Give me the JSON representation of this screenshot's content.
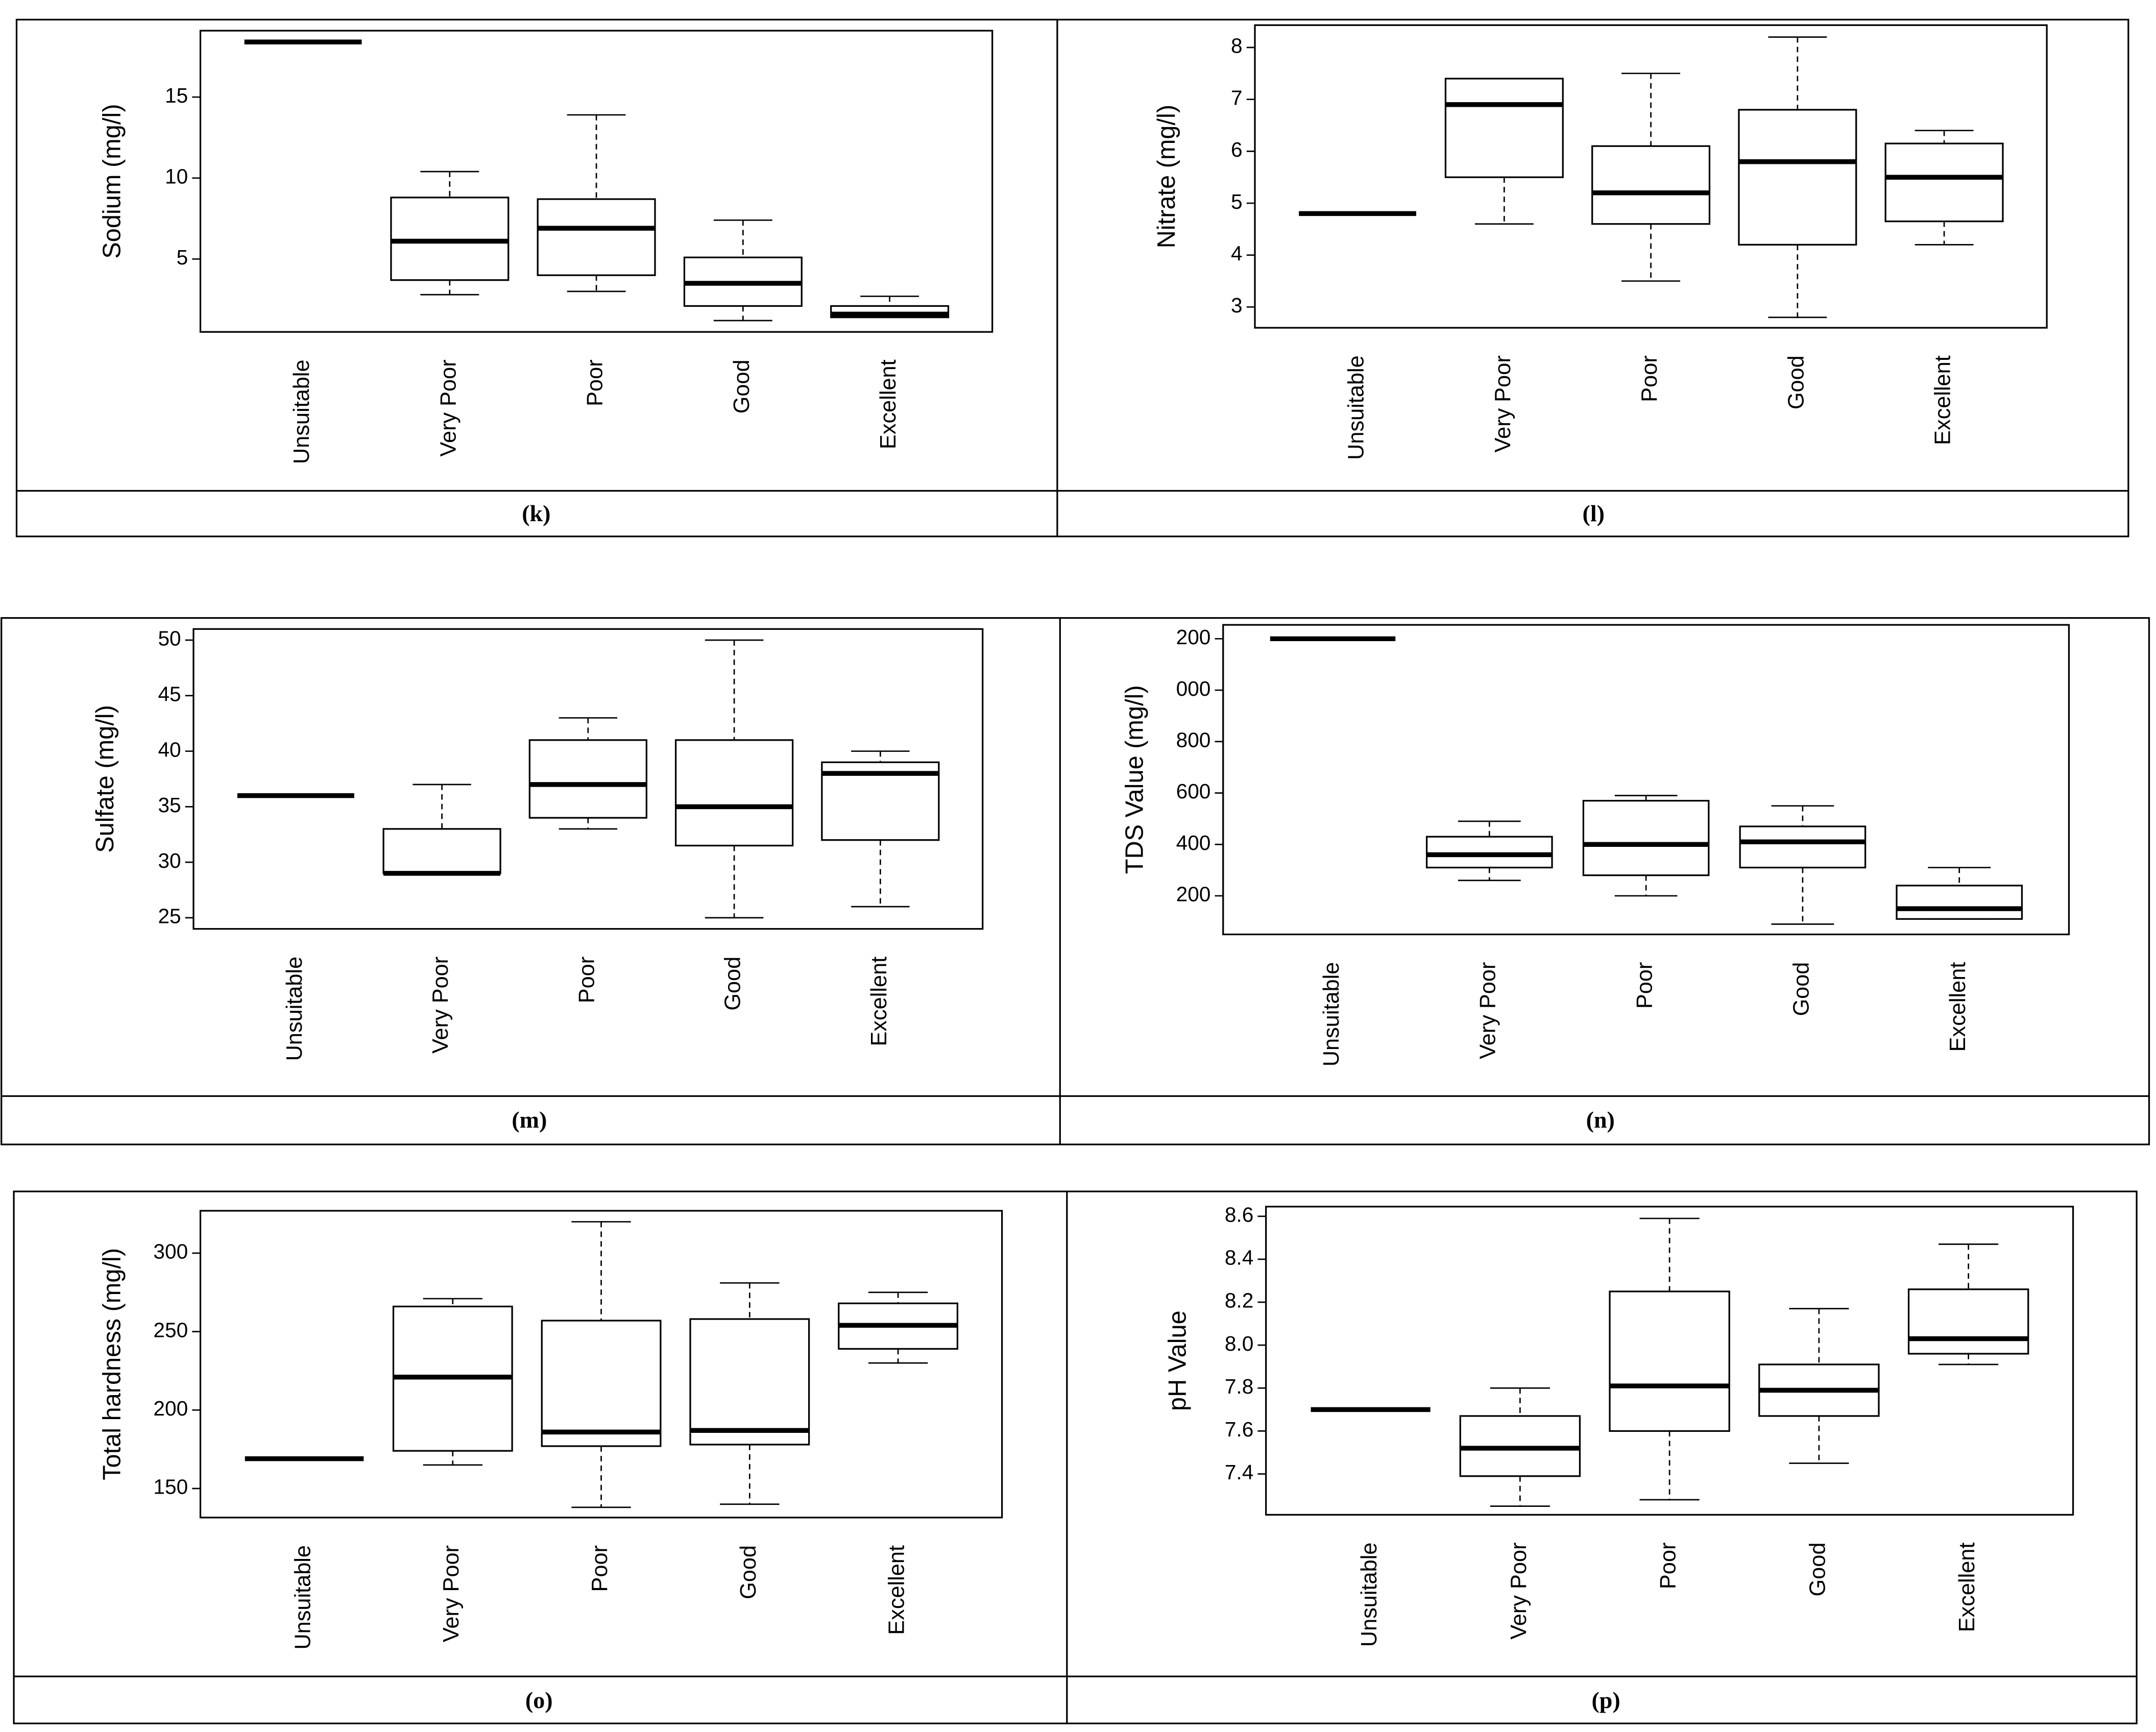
{
  "chart_data": [
    {
      "type": "box",
      "y_label": "Sodium  (mg/l)",
      "caption": "(k)",
      "categories": [
        "Unsuitable",
        "Very Poor",
        "Poor",
        "Good",
        "Excellent"
      ],
      "boxes": [
        {
          "min": 18.4,
          "q1": 18.4,
          "median": 18.4,
          "q3": 18.4,
          "max": 18.4
        },
        {
          "min": 2.8,
          "q1": 3.7,
          "median": 6.1,
          "q3": 8.8,
          "max": 10.4
        },
        {
          "min": 3.0,
          "q1": 4.0,
          "median": 6.9,
          "q3": 8.7,
          "max": 13.9
        },
        {
          "min": 1.2,
          "q1": 2.1,
          "median": 3.5,
          "q3": 5.1,
          "max": 7.4
        },
        {
          "min": 1.4,
          "q1": 1.4,
          "median": 1.6,
          "q3": 2.1,
          "max": 2.7
        }
      ],
      "ylim": [
        0.5,
        19.1
      ],
      "yticks": [
        5,
        10,
        15
      ]
    },
    {
      "type": "box",
      "y_label": "Nitrate  (mg/l)",
      "caption": "(l)",
      "categories": [
        "Unsuitable",
        "Very Poor",
        "Poor",
        "Good",
        "Excellent"
      ],
      "boxes": [
        {
          "min": 4.8,
          "q1": 4.8,
          "median": 4.8,
          "q3": 4.8,
          "max": 4.8
        },
        {
          "min": 4.6,
          "q1": 5.5,
          "median": 6.9,
          "q3": 7.4,
          "max": 7.4
        },
        {
          "min": 3.5,
          "q1": 4.6,
          "median": 5.2,
          "q3": 6.1,
          "max": 7.5
        },
        {
          "min": 2.8,
          "q1": 4.2,
          "median": 5.8,
          "q3": 6.8,
          "max": 8.2
        },
        {
          "min": 4.2,
          "q1": 4.65,
          "median": 5.5,
          "q3": 6.15,
          "max": 6.4
        }
      ],
      "ylim": [
        2.6,
        8.43
      ],
      "yticks": [
        3,
        4,
        5,
        6,
        7,
        8
      ]
    },
    {
      "type": "box",
      "y_label": "Sulfate (mg/l)",
      "caption": "(m)",
      "categories": [
        "Unsuitable",
        "Very Poor",
        "Poor",
        "Good",
        "Excellent"
      ],
      "boxes": [
        {
          "min": 36,
          "q1": 36,
          "median": 36,
          "q3": 36,
          "max": 36
        },
        {
          "min": 29,
          "q1": 29,
          "median": 29,
          "q3": 33,
          "max": 37
        },
        {
          "min": 33,
          "q1": 34,
          "median": 37,
          "q3": 41,
          "max": 43
        },
        {
          "min": 25,
          "q1": 31.5,
          "median": 35,
          "q3": 41,
          "max": 50
        },
        {
          "min": 26,
          "q1": 32,
          "median": 38,
          "q3": 39,
          "max": 40
        }
      ],
      "ylim": [
        24,
        51
      ],
      "yticks": [
        25,
        30,
        35,
        40,
        45,
        50
      ]
    },
    {
      "type": "box",
      "y_label": "TDS Value (mg/l)",
      "caption": "(n)",
      "categories": [
        "Unsuitable",
        "Very Poor",
        "Poor",
        "Good",
        "Excellent"
      ],
      "boxes": [
        {
          "min": 1200,
          "q1": 1200,
          "median": 1200,
          "q3": 1200,
          "max": 1200
        },
        {
          "min": 260,
          "q1": 310,
          "median": 360,
          "q3": 430,
          "max": 490
        },
        {
          "min": 200,
          "q1": 280,
          "median": 400,
          "q3": 570,
          "max": 590
        },
        {
          "min": 90,
          "q1": 310,
          "median": 410,
          "q3": 470,
          "max": 550
        },
        {
          "min": 110,
          "q1": 110,
          "median": 150,
          "q3": 240,
          "max": 310
        }
      ],
      "ylim": [
        50,
        1254
      ],
      "yticks": [
        200,
        400,
        600,
        800,
        {
          "value": 1000,
          "label": "000"
        },
        {
          "value": 1200,
          "label": "200"
        }
      ]
    },
    {
      "type": "box",
      "y_label": "Total hardness (mg/l)",
      "caption": "(o)",
      "categories": [
        "Unsuitable",
        "Very Poor",
        "Poor",
        "Good",
        "Excellent"
      ],
      "boxes": [
        {
          "min": 169,
          "q1": 169,
          "median": 169,
          "q3": 169,
          "max": 169
        },
        {
          "min": 165,
          "q1": 174,
          "median": 221,
          "q3": 266,
          "max": 271
        },
        {
          "min": 138,
          "q1": 177,
          "median": 186,
          "q3": 257,
          "max": 320
        },
        {
          "min": 140,
          "q1": 178,
          "median": 187,
          "q3": 258,
          "max": 281
        },
        {
          "min": 230,
          "q1": 239,
          "median": 254,
          "q3": 268,
          "max": 275
        }
      ],
      "ylim": [
        131.5,
        327
      ],
      "yticks": [
        150,
        200,
        250,
        300
      ]
    },
    {
      "type": "box",
      "y_label": "pH Value",
      "caption": "(p)",
      "categories": [
        "Unsuitable",
        "Very Poor",
        "Poor",
        "Good",
        "Excellent"
      ],
      "boxes": [
        {
          "min": 7.7,
          "q1": 7.7,
          "median": 7.7,
          "q3": 7.7,
          "max": 7.7
        },
        {
          "min": 7.25,
          "q1": 7.39,
          "median": 7.52,
          "q3": 7.67,
          "max": 7.8
        },
        {
          "min": 7.28,
          "q1": 7.6,
          "median": 7.81,
          "q3": 8.25,
          "max": 8.59
        },
        {
          "min": 7.45,
          "q1": 7.67,
          "median": 7.79,
          "q3": 7.91,
          "max": 8.17
        },
        {
          "min": 7.91,
          "q1": 7.96,
          "median": 8.03,
          "q3": 8.26,
          "max": 8.47
        }
      ],
      "ylim": [
        7.21,
        8.645
      ],
      "yticks": [
        7.4,
        7.6,
        7.8,
        {
          "value": 8.0,
          "label": "8.0"
        },
        8.2,
        8.4,
        8.6
      ]
    }
  ]
}
